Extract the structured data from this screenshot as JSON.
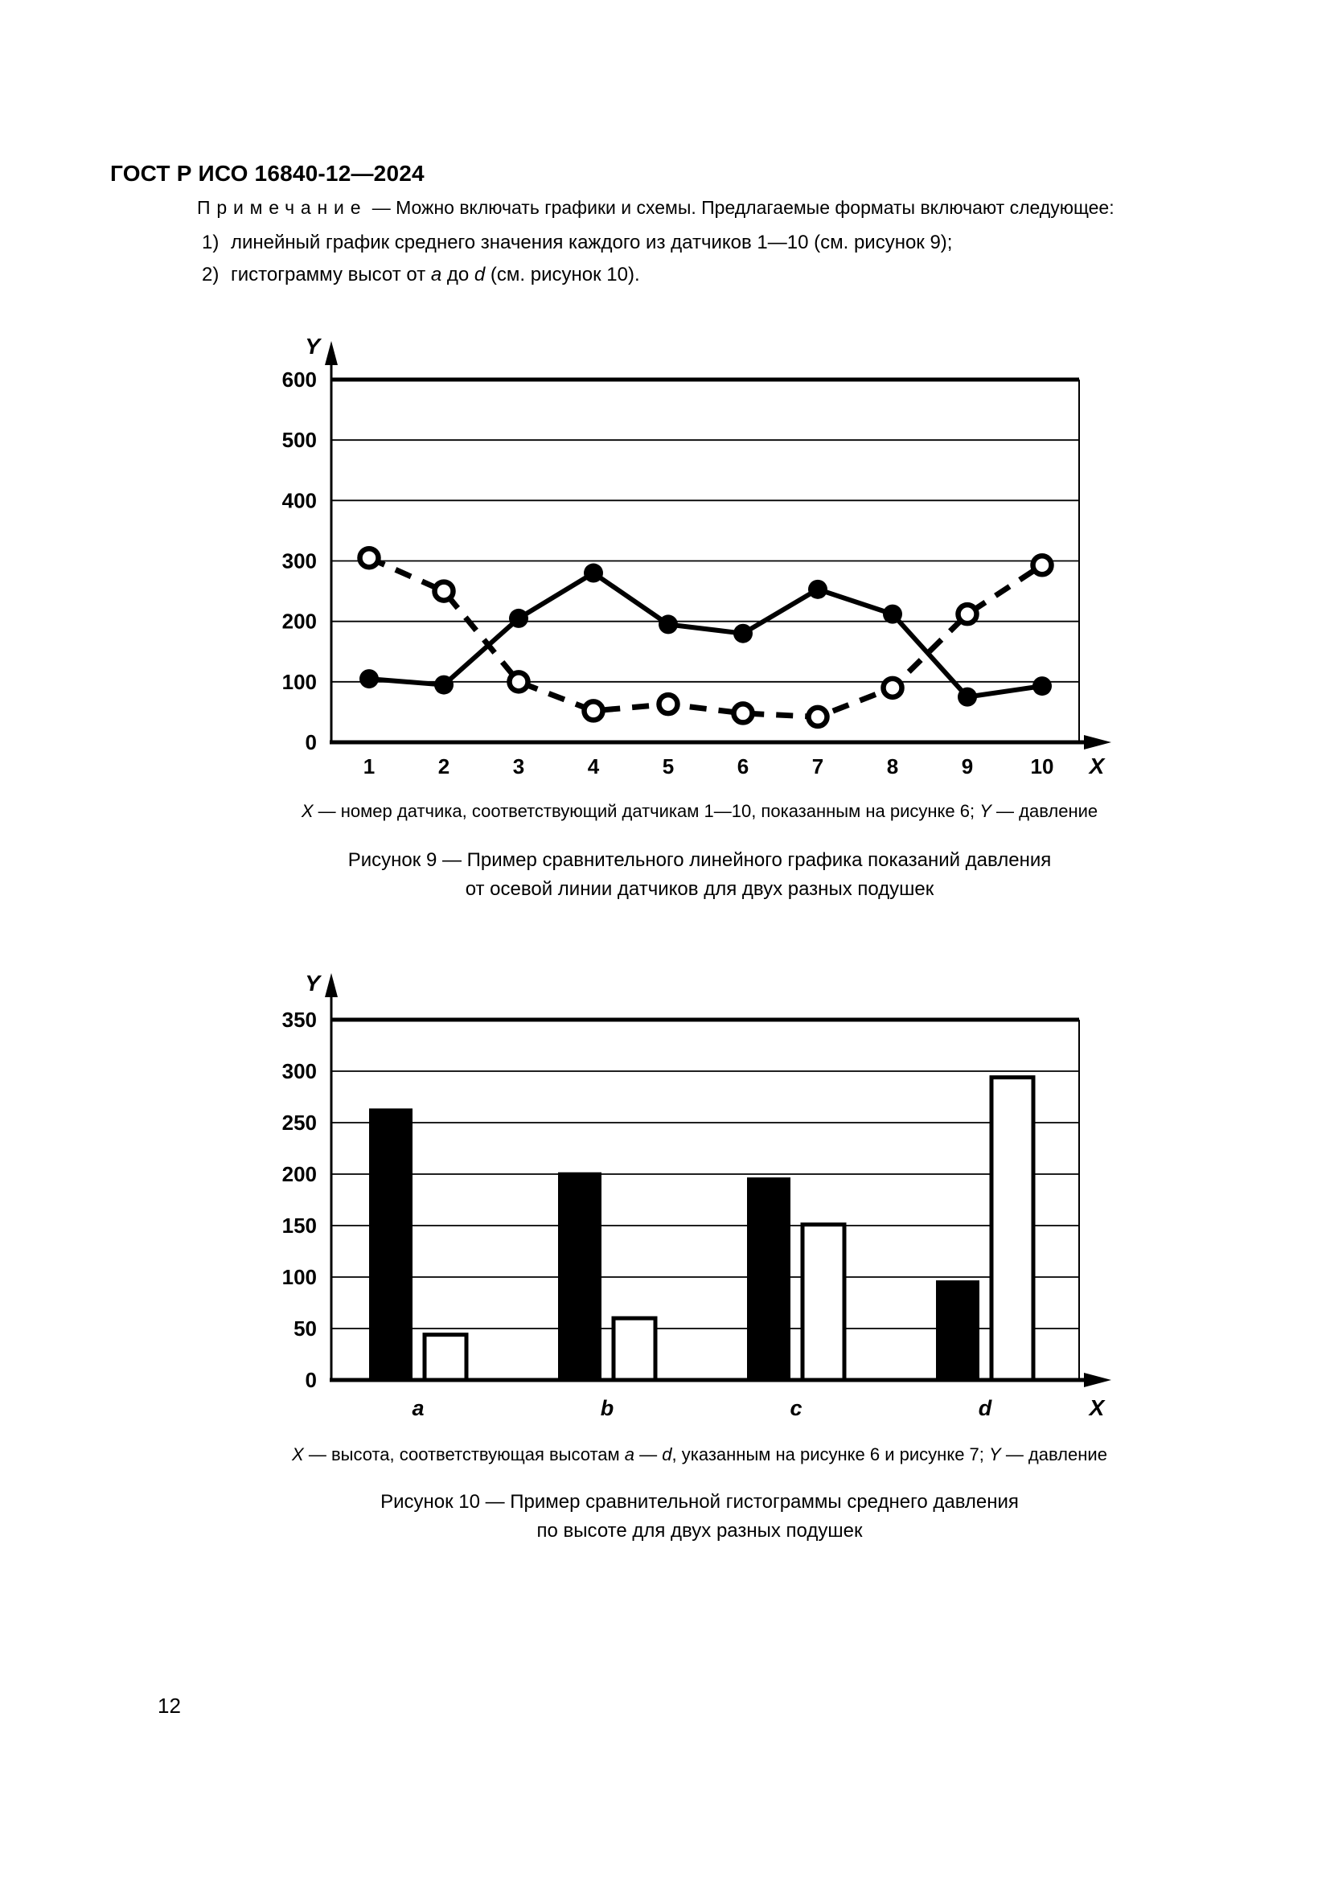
{
  "header": {
    "title": "ГОСТ Р ИСО 16840-12—2024"
  },
  "note": {
    "label": "Примечание",
    "body": "— Можно включать графики и схемы. Предлагаемые форматы включают следующее:"
  },
  "list": {
    "item1": {
      "num": "1)",
      "text": "линейный график среднего значения каждого из датчиков 1—10 (см. рисунок 9);"
    },
    "item2": {
      "num": "2)",
      "parts": [
        "гистограмму высот от ",
        "a",
        " до ",
        "d",
        " (см. рисунок 10)."
      ]
    }
  },
  "fig9": {
    "caption_parts": [
      "X",
      " — номер датчика, соответствующий датчикам 1—10, показанным на рисунке 6; ",
      "Y",
      " — давление"
    ],
    "title_line1": "Рисунок 9 — Пример сравнительного линейного графика показаний давления",
    "title_line2": "от осевой линии датчиков для двух разных подушек"
  },
  "fig10": {
    "caption_parts": [
      "X",
      " — высота, соответствующая высотам ",
      "a",
      " — ",
      "d",
      ", указанным на рисунке 6 и рисунке 7; ",
      "Y",
      " — давление"
    ],
    "title_line1": "Рисунок 10 — Пример сравнительной гистограммы среднего давления",
    "title_line2": "по высоте для двух разных подушек"
  },
  "footer": {
    "page_number": "12"
  },
  "colors": {
    "ink": "#000000",
    "paper": "#ffffff"
  },
  "chart_data": [
    {
      "type": "line",
      "figure": "Рисунок 9",
      "x_categories": [
        "1",
        "2",
        "3",
        "4",
        "5",
        "6",
        "7",
        "8",
        "9",
        "10"
      ],
      "series": [
        {
          "line": "solid",
          "marker": "filled-circle",
          "values": [
            105,
            95,
            205,
            280,
            195,
            180,
            253,
            212,
            75,
            93
          ]
        },
        {
          "line": "dashed",
          "marker": "open-circle",
          "values": [
            305,
            250,
            100,
            52,
            63,
            48,
            42,
            90,
            212,
            293
          ]
        }
      ],
      "xlabel": "X",
      "ylabel": "Y",
      "ylim": [
        0,
        600
      ],
      "ytick_step": 100,
      "grid": true,
      "legend": "none"
    },
    {
      "type": "bar",
      "figure": "Рисунок 10",
      "categories": [
        "a",
        "b",
        "c",
        "d"
      ],
      "series": [
        {
          "fill": "black",
          "values": [
            263,
            201,
            196,
            96
          ]
        },
        {
          "fill": "white",
          "values": [
            44,
            60,
            151,
            294
          ]
        }
      ],
      "xlabel": "X",
      "ylabel": "Y",
      "ylim": [
        0,
        350
      ],
      "ytick_step": 50,
      "grid": true,
      "legend": "none"
    }
  ]
}
